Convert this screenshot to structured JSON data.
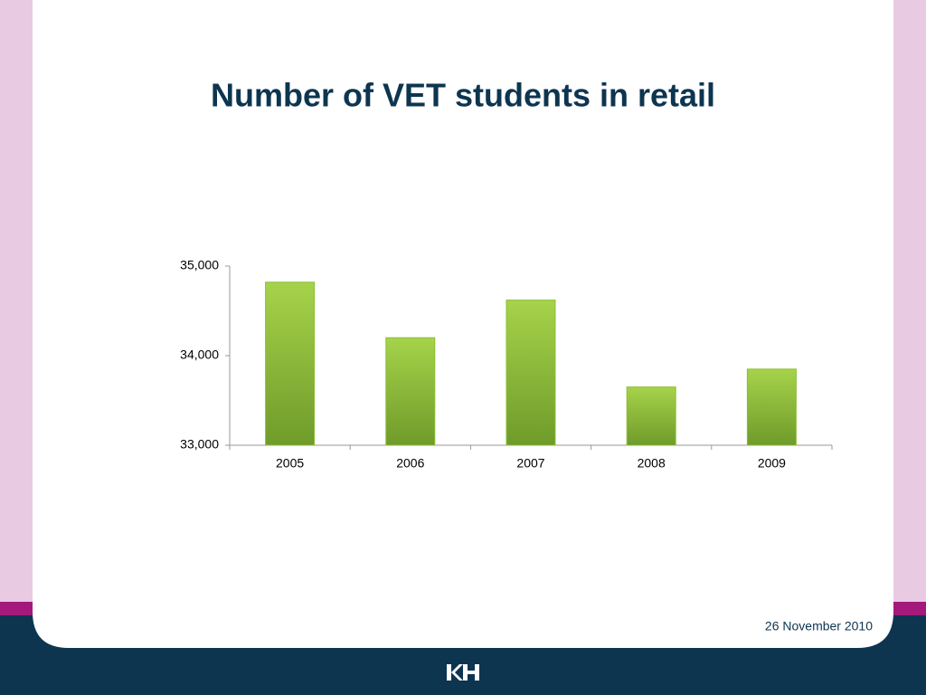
{
  "chart_data": {
    "type": "bar",
    "title": "Number of VET students in retail",
    "categories": [
      "2005",
      "2006",
      "2007",
      "2008",
      "2009"
    ],
    "values": [
      34820,
      34200,
      34620,
      33650,
      33850
    ],
    "color": "#8dbd38",
    "ylim": [
      33000,
      35000
    ],
    "yticks": [
      {
        "value": 33000,
        "label": "33,000"
      },
      {
        "value": 34000,
        "label": "34,000"
      },
      {
        "value": 35000,
        "label": "35,000"
      }
    ],
    "grid": false
  },
  "footer": {
    "date": "26 November 2010"
  }
}
